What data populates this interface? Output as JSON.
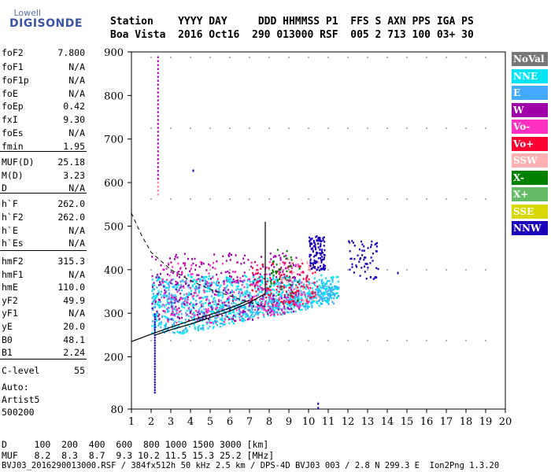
{
  "logo": {
    "line1": "Lowell",
    "line2": "DIGISONDE"
  },
  "header": {
    "row1": "Station    YYYY DAY     DDD HHMMSS P1  FFS S AXN PPS IGA PS",
    "row2": "Boa Vista  2016 Oct16  290 013000 RSF  005 2 713 100 03+ 30"
  },
  "params": [
    {
      "k": "foF2",
      "v": "7.800"
    },
    {
      "k": "foF1",
      "v": "N/A"
    },
    {
      "k": "foF1p",
      "v": "N/A"
    },
    {
      "k": "foE",
      "v": "N/A"
    },
    {
      "k": "foEp",
      "v": "0.42"
    },
    {
      "k": "fxI",
      "v": "9.30"
    },
    {
      "k": "foEs",
      "v": "N/A"
    },
    {
      "k": "fmin",
      "v": "1.95"
    },
    {
      "k": "MUF(D)",
      "v": "25.18"
    },
    {
      "k": "M(D)",
      "v": "3.23"
    },
    {
      "k": "D",
      "v": "N/A"
    },
    {
      "k": "h`F",
      "v": "262.0"
    },
    {
      "k": "h`F2",
      "v": "262.0"
    },
    {
      "k": "h`E",
      "v": "N/A"
    },
    {
      "k": "h`Es",
      "v": "N/A"
    },
    {
      "k": "hmF2",
      "v": "315.3"
    },
    {
      "k": "hmF1",
      "v": "N/A"
    },
    {
      "k": "hmE",
      "v": "110.0"
    },
    {
      "k": "yF2",
      "v": "49.9"
    },
    {
      "k": "yF1",
      "v": "N/A"
    },
    {
      "k": "yE",
      "v": "20.0"
    },
    {
      "k": "B0",
      "v": "48.1"
    },
    {
      "k": "B1",
      "v": "2.24"
    },
    {
      "k": "C-level",
      "v": "55"
    }
  ],
  "auto": {
    "l1": "Auto:",
    "l2": "Artist5",
    "l3": "500200"
  },
  "footer": {
    "d_row": "D     100  200  400  600  800 1000 1500 3000 [km]",
    "muf_row": "MUF   8.2  8.3  8.7  9.3 10.2 11.5 15.3 25.2 [MHz]",
    "file_row": "BVJ03_2016290013000.RSF / 384fx512h 50 kHz 2.5 km / DPS-4D BVJ03 003 / 2.8 N 299.3 E  Ion2Png 1.3.20"
  },
  "legend": [
    {
      "label": "NoVal",
      "color": "#777777"
    },
    {
      "label": "NNE",
      "color": "#00e4f4"
    },
    {
      "label": "E",
      "color": "#44aaff"
    },
    {
      "label": "W",
      "color": "#a000a8"
    },
    {
      "label": "Vo-",
      "color": "#ff30c0"
    },
    {
      "label": "Vo+",
      "color": "#ff0033"
    },
    {
      "label": "SSW",
      "color": "#ffb0b0"
    },
    {
      "label": "X-",
      "color": "#008000"
    },
    {
      "label": "X+",
      "color": "#66bb66"
    },
    {
      "label": "SSE",
      "color": "#d8d800"
    },
    {
      "label": "NNW",
      "color": "#1a00b8"
    }
  ],
  "chart_data": {
    "type": "scatter",
    "xlim": [
      1,
      20
    ],
    "ylim": [
      80,
      900
    ],
    "xticks": [
      1,
      2,
      3,
      4,
      5,
      6,
      7,
      8,
      9,
      10,
      11,
      12,
      13,
      14,
      15,
      16,
      17,
      18,
      19,
      20
    ],
    "yticks": [
      80,
      200,
      300,
      400,
      500,
      600,
      700,
      800,
      900
    ],
    "ytick_labels": [
      "80",
      "200",
      "300",
      "400",
      "500",
      "600",
      "700",
      "800",
      "900"
    ],
    "profile_curve": [
      [
        2.2,
        250
      ],
      [
        3,
        262
      ],
      [
        4,
        275
      ],
      [
        5,
        290
      ],
      [
        6,
        305
      ],
      [
        7,
        325
      ],
      [
        7.8,
        345
      ]
    ],
    "lower_trace": [
      [
        1,
        235
      ],
      [
        2,
        252
      ],
      [
        3,
        268
      ],
      [
        4,
        283
      ],
      [
        5,
        297
      ],
      [
        6,
        312
      ],
      [
        7,
        330
      ]
    ],
    "dashed_curve": [
      [
        1,
        530
      ],
      [
        1.5,
        480
      ],
      [
        2,
        440
      ],
      [
        3,
        400
      ],
      [
        4,
        375
      ],
      [
        5,
        355
      ],
      [
        6,
        340
      ],
      [
        7,
        325
      ],
      [
        7.8,
        315
      ]
    ],
    "clusters": [
      {
        "legend": "NNE",
        "x": [
          2.0,
          11.5
        ],
        "y": [
          255,
          390
        ],
        "n": 900
      },
      {
        "legend": "E",
        "x": [
          2.0,
          11.5
        ],
        "y": [
          255,
          380
        ],
        "n": 500
      },
      {
        "legend": "W",
        "x": [
          2.0,
          9.5
        ],
        "y": [
          280,
          440
        ],
        "n": 350
      },
      {
        "legend": "Vo-",
        "x": [
          2.5,
          10.0
        ],
        "y": [
          280,
          420
        ],
        "n": 250
      },
      {
        "legend": "Vo+",
        "x": [
          7.0,
          10.5
        ],
        "y": [
          320,
          420
        ],
        "n": 120
      },
      {
        "legend": "NNW",
        "x": [
          10.0,
          10.8
        ],
        "y": [
          400,
          480
        ],
        "n": 120
      },
      {
        "legend": "NNW",
        "x": [
          12.0,
          13.5
        ],
        "y": [
          380,
          470
        ],
        "n": 60
      },
      {
        "legend": "X-",
        "x": [
          8.0,
          9.5
        ],
        "y": [
          330,
          450
        ],
        "n": 40
      },
      {
        "legend": "SSW",
        "x": [
          8.5,
          10.5
        ],
        "y": [
          330,
          430
        ],
        "n": 40
      }
    ],
    "vertical_streak": {
      "x": 2.15,
      "y": [
        575,
        895
      ],
      "legend": "W"
    },
    "low_streak": {
      "x": 2.15,
      "y": [
        120,
        300
      ],
      "legend": "NNW"
    },
    "isolated_points": [
      [
        14.5,
        395
      ],
      [
        4.1,
        630
      ],
      [
        10.45,
        95
      ],
      [
        10.45,
        85
      ]
    ]
  }
}
